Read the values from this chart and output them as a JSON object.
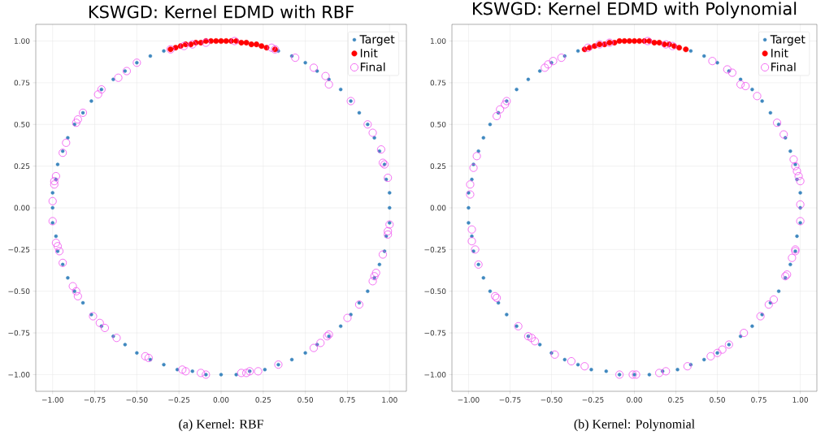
{
  "chart_data": [
    {
      "type": "scatter",
      "title": "KSWGD: Kernel EDMD with RBF",
      "annotations": [
        "(a) Kernel: RBF"
      ],
      "xlim": [
        -1.1,
        1.1
      ],
      "ylim": [
        -1.1,
        1.1
      ],
      "xticks": [
        {
          "value": -1,
          "label": "−1.00"
        },
        {
          "value": -0.75,
          "label": "−0.75"
        },
        {
          "value": -0.5,
          "label": "−0.50"
        },
        {
          "value": -0.25,
          "label": "−0.25"
        },
        {
          "value": 0,
          "label": "0.00"
        },
        {
          "value": 0.25,
          "label": "0.25"
        },
        {
          "value": 0.5,
          "label": "0.50"
        },
        {
          "value": 0.75,
          "label": "0.75"
        },
        {
          "value": 1,
          "label": "1.00"
        }
      ],
      "yticks": [
        {
          "value": -1,
          "label": "−1.00"
        },
        {
          "value": -0.75,
          "label": "−0.75"
        },
        {
          "value": -0.5,
          "label": "−0.50"
        },
        {
          "value": -0.25,
          "label": "−0.25"
        },
        {
          "value": 0,
          "label": "0.00"
        },
        {
          "value": 0.25,
          "label": "0.25"
        },
        {
          "value": 0.5,
          "label": "0.50"
        },
        {
          "value": 0.75,
          "label": "0.75"
        },
        {
          "value": 1,
          "label": "1.00"
        }
      ],
      "grid": true,
      "legend": "top right",
      "marker": "circle",
      "series": [
        {
          "name": "Target",
          "color": "#3f88bf",
          "x": [
            1,
            1,
            0.98,
            0.97,
            0.94,
            0.91,
            0.87,
            0.82,
            0.77,
            0.71,
            0.64,
            0.57,
            0.5,
            0.42,
            0.34,
            -0.34,
            -0.42,
            -0.5,
            -0.57,
            -0.64,
            -0.71,
            -0.77,
            -0.82,
            -0.87,
            -0.91,
            -0.94,
            -0.97,
            -0.98,
            -1,
            -1,
            -1,
            -0.98,
            -0.97,
            -0.94,
            -0.91,
            -0.87,
            -0.82,
            -0.77,
            -0.71,
            -0.64,
            -0.57,
            -0.5,
            -0.42,
            -0.34,
            -0.26,
            -0.17,
            -0.09,
            0,
            0.09,
            0.17,
            0.26,
            0.34,
            0.42,
            0.5,
            0.57,
            0.64,
            0.71,
            0.77,
            0.82,
            0.87,
            0.91,
            0.94,
            0.97,
            0.98,
            1
          ],
          "values": [
            0,
            0.09,
            0.17,
            0.26,
            0.34,
            0.42,
            0.5,
            0.57,
            0.64,
            0.71,
            0.77,
            0.82,
            0.87,
            0.91,
            0.94,
            0.94,
            0.91,
            0.87,
            0.82,
            0.77,
            0.71,
            0.64,
            0.57,
            0.5,
            0.42,
            0.34,
            0.26,
            0.17,
            0.09,
            0,
            -0.09,
            -0.17,
            -0.26,
            -0.34,
            -0.42,
            -0.5,
            -0.57,
            -0.64,
            -0.71,
            -0.77,
            -0.82,
            -0.87,
            -0.91,
            -0.94,
            -0.97,
            -0.98,
            -1,
            -1,
            -1,
            -0.98,
            -0.97,
            -0.94,
            -0.91,
            -0.87,
            -0.82,
            -0.77,
            -0.71,
            -0.64,
            -0.57,
            -0.5,
            -0.42,
            -0.34,
            -0.26,
            -0.17,
            -0.09
          ]
        },
        {
          "name": "Init",
          "color": "#ff0000",
          "x": [
            -0.3,
            -0.27,
            -0.24,
            -0.21,
            -0.18,
            -0.15,
            -0.12,
            -0.09,
            -0.06,
            -0.03,
            0,
            0.03,
            0.06,
            0.09,
            0.12,
            0.15,
            0.18,
            0.21,
            0.24,
            0.27,
            0.32
          ],
          "values": [
            0.95,
            0.96,
            0.97,
            0.98,
            0.98,
            0.99,
            0.99,
            1,
            1,
            1,
            1,
            1,
            1,
            1,
            0.99,
            0.99,
            0.98,
            0.98,
            0.97,
            0.96,
            0.95
          ]
        },
        {
          "name": "Final",
          "color": "#f050f0",
          "x": [
            -0.3,
            -0.22,
            -0.17,
            -0.09,
            0.08,
            0.3,
            0.32,
            0.44,
            0.55,
            0.62,
            0.64,
            0.77,
            0.87,
            0.9,
            0.95,
            0.96,
            0.97,
            0.99,
            -0.5,
            -0.56,
            -0.61,
            -0.71,
            -0.73,
            -0.82,
            -0.85,
            -0.86,
            -0.92,
            -0.94,
            -0.98,
            -0.99,
            -0.99,
            -1,
            -1,
            -0.98,
            -0.97,
            -0.96,
            -0.94,
            -0.88,
            -0.86,
            -0.85,
            -0.76,
            -0.72,
            -0.69,
            -0.62,
            -0.45,
            -0.43,
            -0.23,
            -0.21,
            -0.12,
            -0.09,
            0.12,
            0.15,
            0.17,
            0.22,
            0.34,
            0.55,
            0.59,
            0.63,
            0.64,
            0.75,
            0.82,
            0.9,
            0.91,
            0.92,
            0.96,
            0.99,
            0.99,
            1
          ],
          "values": [
            0.95,
            0.97,
            0.98,
            0.99,
            1,
            0.96,
            0.95,
            0.9,
            0.84,
            0.79,
            0.74,
            0.64,
            0.5,
            0.45,
            0.35,
            0.27,
            0.26,
            0.18,
            0.87,
            0.82,
            0.78,
            0.71,
            0.68,
            0.57,
            0.53,
            0.51,
            0.39,
            0.33,
            0.19,
            0.16,
            0.14,
            0.04,
            -0.08,
            -0.21,
            -0.23,
            -0.26,
            -0.33,
            -0.47,
            -0.5,
            -0.53,
            -0.65,
            -0.69,
            -0.72,
            -0.78,
            -0.89,
            -0.9,
            -0.97,
            -0.98,
            -0.99,
            -1,
            -0.99,
            -0.99,
            -0.98,
            -0.98,
            -0.94,
            -0.84,
            -0.81,
            -0.77,
            -0.76,
            -0.66,
            -0.58,
            -0.44,
            -0.41,
            -0.39,
            -0.28,
            -0.16,
            -0.14,
            -0.1
          ]
        }
      ]
    },
    {
      "type": "scatter",
      "title": "KSWGD: Kernel EDMD with Polynomial",
      "annotations": [
        "(b) Kernel: Polynomial"
      ],
      "xlim": [
        -1.1,
        1.1
      ],
      "ylim": [
        -1.1,
        1.1
      ],
      "xticks": [
        {
          "value": -1,
          "label": "−1.00"
        },
        {
          "value": -0.75,
          "label": "−0.75"
        },
        {
          "value": -0.5,
          "label": "−0.50"
        },
        {
          "value": -0.25,
          "label": "−0.25"
        },
        {
          "value": 0,
          "label": "0.00"
        },
        {
          "value": 0.25,
          "label": "0.25"
        },
        {
          "value": 0.5,
          "label": "0.50"
        },
        {
          "value": 0.75,
          "label": "0.75"
        },
        {
          "value": 1,
          "label": "1.00"
        }
      ],
      "yticks": [
        {
          "value": -1,
          "label": "−1.00"
        },
        {
          "value": -0.75,
          "label": "−0.75"
        },
        {
          "value": -0.5,
          "label": "−0.50"
        },
        {
          "value": -0.25,
          "label": "−0.25"
        },
        {
          "value": 0,
          "label": "0.00"
        },
        {
          "value": 0.25,
          "label": "0.25"
        },
        {
          "value": 0.5,
          "label": "0.50"
        },
        {
          "value": 0.75,
          "label": "0.75"
        },
        {
          "value": 1,
          "label": "1.00"
        }
      ],
      "grid": true,
      "legend": "top right",
      "marker": "circle",
      "series": [
        {
          "name": "Target",
          "color": "#3f88bf",
          "x": [
            1,
            1,
            0.98,
            0.97,
            0.94,
            0.91,
            0.87,
            0.82,
            0.77,
            0.71,
            0.64,
            0.57,
            0.5,
            0.42,
            0.34,
            -0.34,
            -0.42,
            -0.5,
            -0.57,
            -0.64,
            -0.71,
            -0.77,
            -0.82,
            -0.87,
            -0.91,
            -0.94,
            -0.97,
            -0.98,
            -1,
            -1,
            -1,
            -0.98,
            -0.97,
            -0.94,
            -0.91,
            -0.87,
            -0.82,
            -0.77,
            -0.71,
            -0.64,
            -0.57,
            -0.5,
            -0.42,
            -0.34,
            -0.26,
            -0.17,
            -0.09,
            0,
            0.09,
            0.17,
            0.26,
            0.34,
            0.42,
            0.5,
            0.57,
            0.64,
            0.71,
            0.77,
            0.82,
            0.87,
            0.91,
            0.94,
            0.97,
            0.98,
            1
          ],
          "values": [
            0,
            0.09,
            0.17,
            0.26,
            0.34,
            0.42,
            0.5,
            0.57,
            0.64,
            0.71,
            0.77,
            0.82,
            0.87,
            0.91,
            0.94,
            0.94,
            0.91,
            0.87,
            0.82,
            0.77,
            0.71,
            0.64,
            0.57,
            0.5,
            0.42,
            0.34,
            0.26,
            0.17,
            0.09,
            0,
            -0.09,
            -0.17,
            -0.26,
            -0.34,
            -0.42,
            -0.5,
            -0.57,
            -0.64,
            -0.71,
            -0.77,
            -0.82,
            -0.87,
            -0.91,
            -0.94,
            -0.97,
            -0.98,
            -1,
            -1,
            -1,
            -0.98,
            -0.97,
            -0.94,
            -0.91,
            -0.87,
            -0.82,
            -0.77,
            -0.71,
            -0.64,
            -0.57,
            -0.5,
            -0.42,
            -0.34,
            -0.26,
            -0.17,
            -0.09
          ]
        },
        {
          "name": "Init",
          "color": "#ff0000",
          "x": [
            -0.3,
            -0.27,
            -0.24,
            -0.21,
            -0.18,
            -0.15,
            -0.12,
            -0.09,
            -0.06,
            -0.03,
            0,
            0.03,
            0.06,
            0.09,
            0.12,
            0.15,
            0.18,
            0.21,
            0.24,
            0.27,
            0.31
          ],
          "values": [
            0.95,
            0.96,
            0.97,
            0.98,
            0.98,
            0.99,
            0.99,
            1,
            1,
            1,
            1,
            1,
            1,
            1,
            0.99,
            0.99,
            0.98,
            0.98,
            0.97,
            0.96,
            0.95
          ]
        },
        {
          "name": "Final",
          "color": "#f050f0",
          "x": [
            -0.28,
            -0.21,
            -0.15,
            0.08,
            0.19,
            0.23,
            0.47,
            0.56,
            0.59,
            0.64,
            0.67,
            0.74,
            0.86,
            0.9,
            0.96,
            0.97,
            0.98,
            0.99,
            1,
            1,
            -0.44,
            -0.49,
            -0.52,
            -0.54,
            -0.77,
            -0.78,
            -0.81,
            -0.83,
            -0.95,
            -0.97,
            -0.99,
            -0.99,
            -0.98,
            -0.98,
            -0.96,
            -0.94,
            -0.84,
            -0.83,
            -0.7,
            -0.64,
            -0.62,
            -0.6,
            -0.48,
            -0.38,
            -0.3,
            -0.09,
            -0.01,
            0.01,
            0.15,
            0.19,
            0.32,
            0.46,
            0.5,
            0.53,
            0.57,
            0.66,
            0.76,
            0.81,
            0.84,
            0.91,
            0.92,
            0.95,
            0.97,
            0.97,
            1
          ],
          "values": [
            0.96,
            0.98,
            0.99,
            1,
            0.98,
            0.97,
            0.88,
            0.83,
            0.81,
            0.74,
            0.73,
            0.67,
            0.51,
            0.44,
            0.29,
            0.25,
            0.22,
            0.19,
            0.16,
            0.02,
            0.9,
            0.88,
            0.86,
            0.84,
            0.64,
            0.62,
            0.59,
            0.55,
            0.31,
            0.24,
            0.14,
            0.08,
            -0.13,
            -0.2,
            -0.25,
            -0.34,
            -0.53,
            -0.54,
            -0.71,
            -0.77,
            -0.78,
            -0.8,
            -0.88,
            -0.92,
            -0.95,
            -1,
            -1,
            -1,
            -0.99,
            -0.98,
            -0.95,
            -0.89,
            -0.87,
            -0.85,
            -0.82,
            -0.75,
            -0.65,
            -0.58,
            -0.55,
            -0.41,
            -0.4,
            -0.3,
            -0.26,
            -0.25,
            -0.08
          ]
        }
      ]
    }
  ]
}
